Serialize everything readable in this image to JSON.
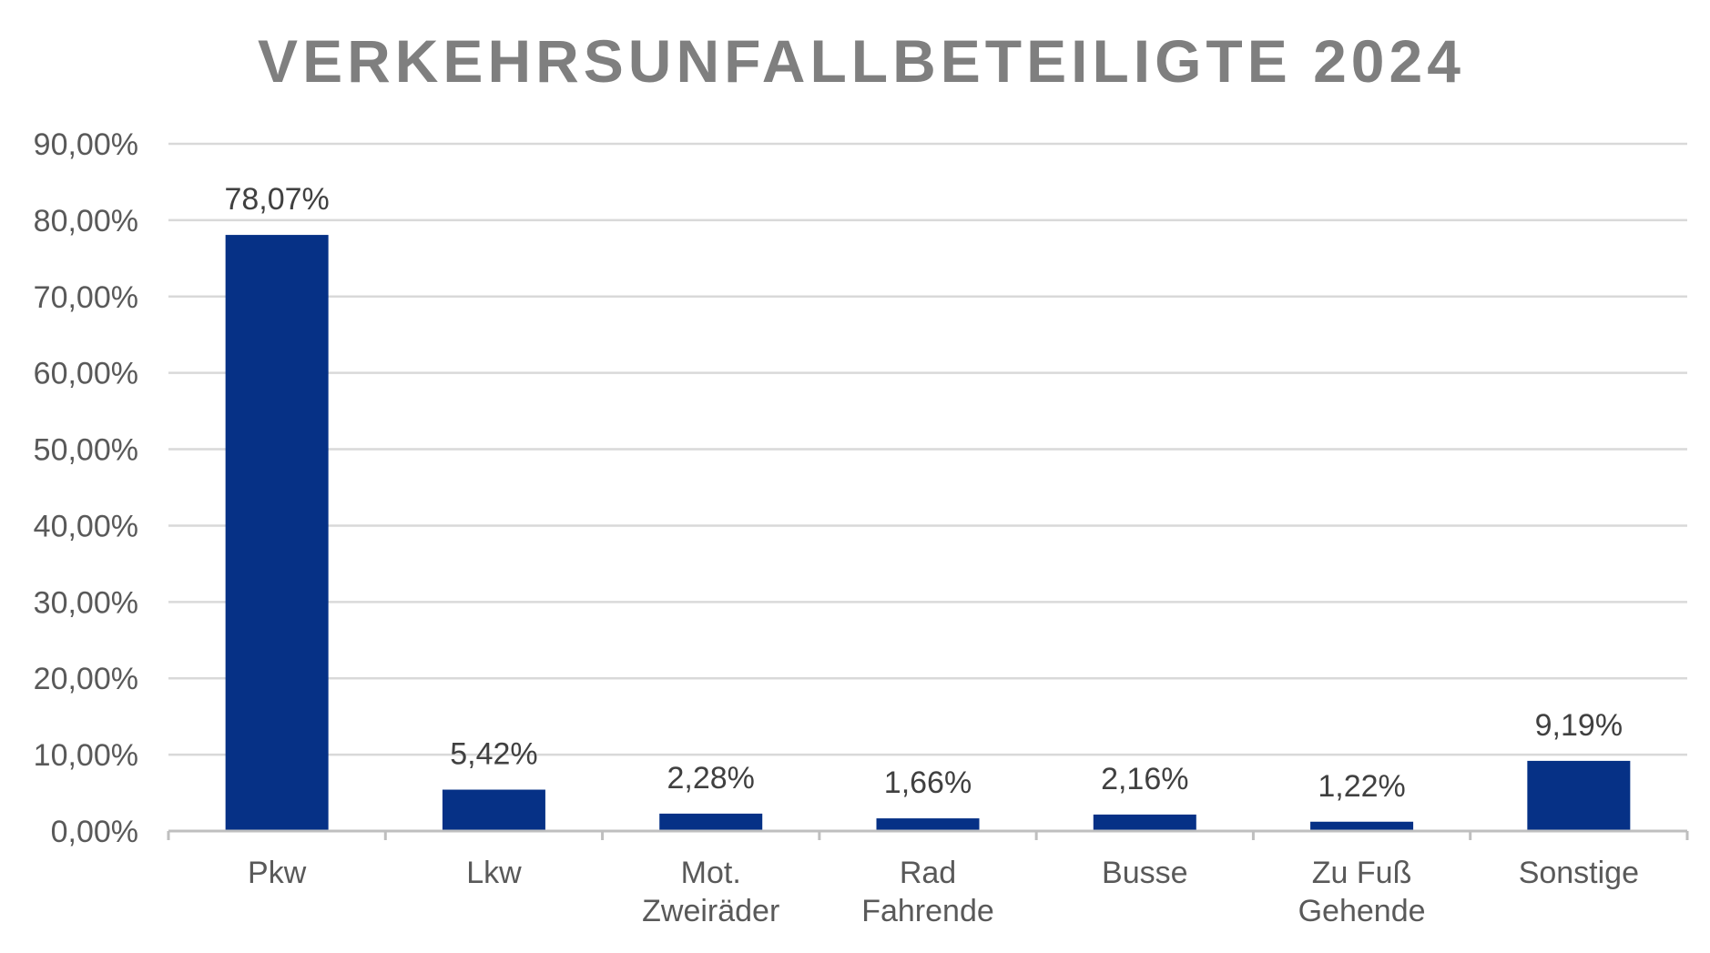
{
  "chart_data": {
    "type": "bar",
    "title": "VERKEHRSUNFALLBETEILIGTE 2024",
    "xlabel": "",
    "ylabel": "",
    "categories": [
      [
        "Pkw"
      ],
      [
        "Lkw"
      ],
      [
        "Mot.",
        "Zweiräder"
      ],
      [
        "Rad",
        "Fahrende"
      ],
      [
        "Busse"
      ],
      [
        "Zu Fuß",
        "Gehende"
      ],
      [
        "Sonstige"
      ]
    ],
    "values": [
      78.07,
      5.42,
      2.28,
      1.66,
      2.16,
      1.22,
      9.19
    ],
    "data_labels": [
      "78,07%",
      "5,42%",
      "2,28%",
      "1,66%",
      "2,16%",
      "1,22%",
      "9,19%"
    ],
    "ylim": [
      0,
      90
    ],
    "yticks": [
      0,
      10,
      20,
      30,
      40,
      50,
      60,
      70,
      80,
      90
    ],
    "ytick_labels": [
      "0,00%",
      "10,00%",
      "20,00%",
      "30,00%",
      "40,00%",
      "50,00%",
      "60,00%",
      "70,00%",
      "80,00%",
      "90,00%"
    ],
    "grid": true,
    "legend": "none",
    "colors": {
      "bar": "#063186",
      "title": "#7f7f7f",
      "tick_text": "#595959",
      "label_text": "#404040",
      "grid": "#d9d9d9",
      "axis": "#bfbfbf"
    }
  }
}
